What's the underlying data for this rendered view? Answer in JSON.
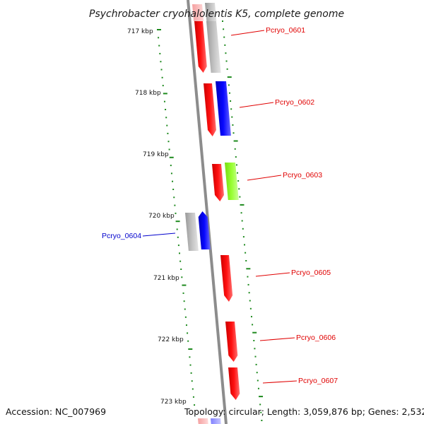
{
  "title": "Psychrobacter cryohalolentis K5, complete genome",
  "accession": "Accession: NC_007969",
  "summary": "Topology: circular; Length: 3,059,876 bp; Genes: 2,532",
  "colors": {
    "backbone": "#8c8c8c",
    "tick": "#1e8a1e",
    "red": "#ff0000",
    "blue": "#0000ff",
    "grey": "#bbbbbb",
    "green": "#99ff33",
    "label_red": "#e00000",
    "label_blue": "#0000cc"
  },
  "kbp_labels": [
    "717 kbp",
    "718 kbp",
    "719 kbp",
    "720 kbp",
    "721 kbp",
    "722 kbp",
    "723 kbp"
  ],
  "genes": [
    {
      "label": "Pcryo_0601",
      "color": "red"
    },
    {
      "label": "Pcryo_0602",
      "color": "red"
    },
    {
      "label": "Pcryo_0603",
      "color": "red"
    },
    {
      "label": "Pcryo_0604",
      "color": "blue"
    },
    {
      "label": "Pcryo_0605",
      "color": "red"
    },
    {
      "label": "Pcryo_0606",
      "color": "red"
    },
    {
      "label": "Pcryo_0607",
      "color": "red"
    }
  ]
}
